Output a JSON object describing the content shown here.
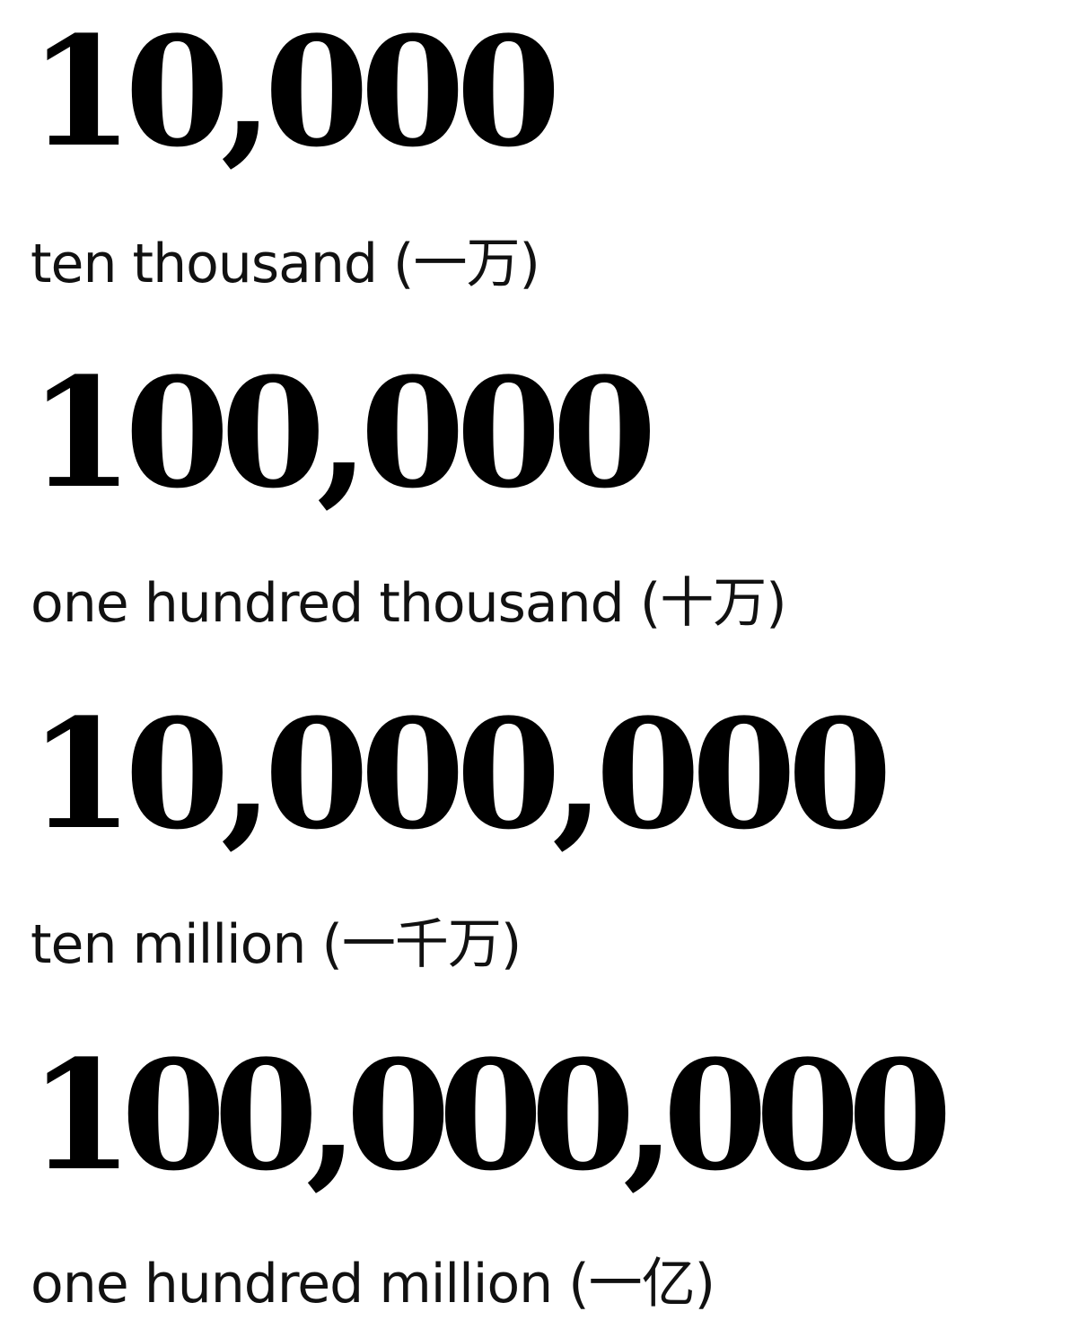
{
  "rows": [
    {
      "number": "10,000",
      "caption": "ten thousand (一万)"
    },
    {
      "number": "100,000",
      "caption": "one hundred thousand (十万)"
    },
    {
      "number": "10,000,000",
      "caption": "ten million (一千万)"
    },
    {
      "number": "100,000,000",
      "caption": "one hundred million (一亿)"
    }
  ]
}
